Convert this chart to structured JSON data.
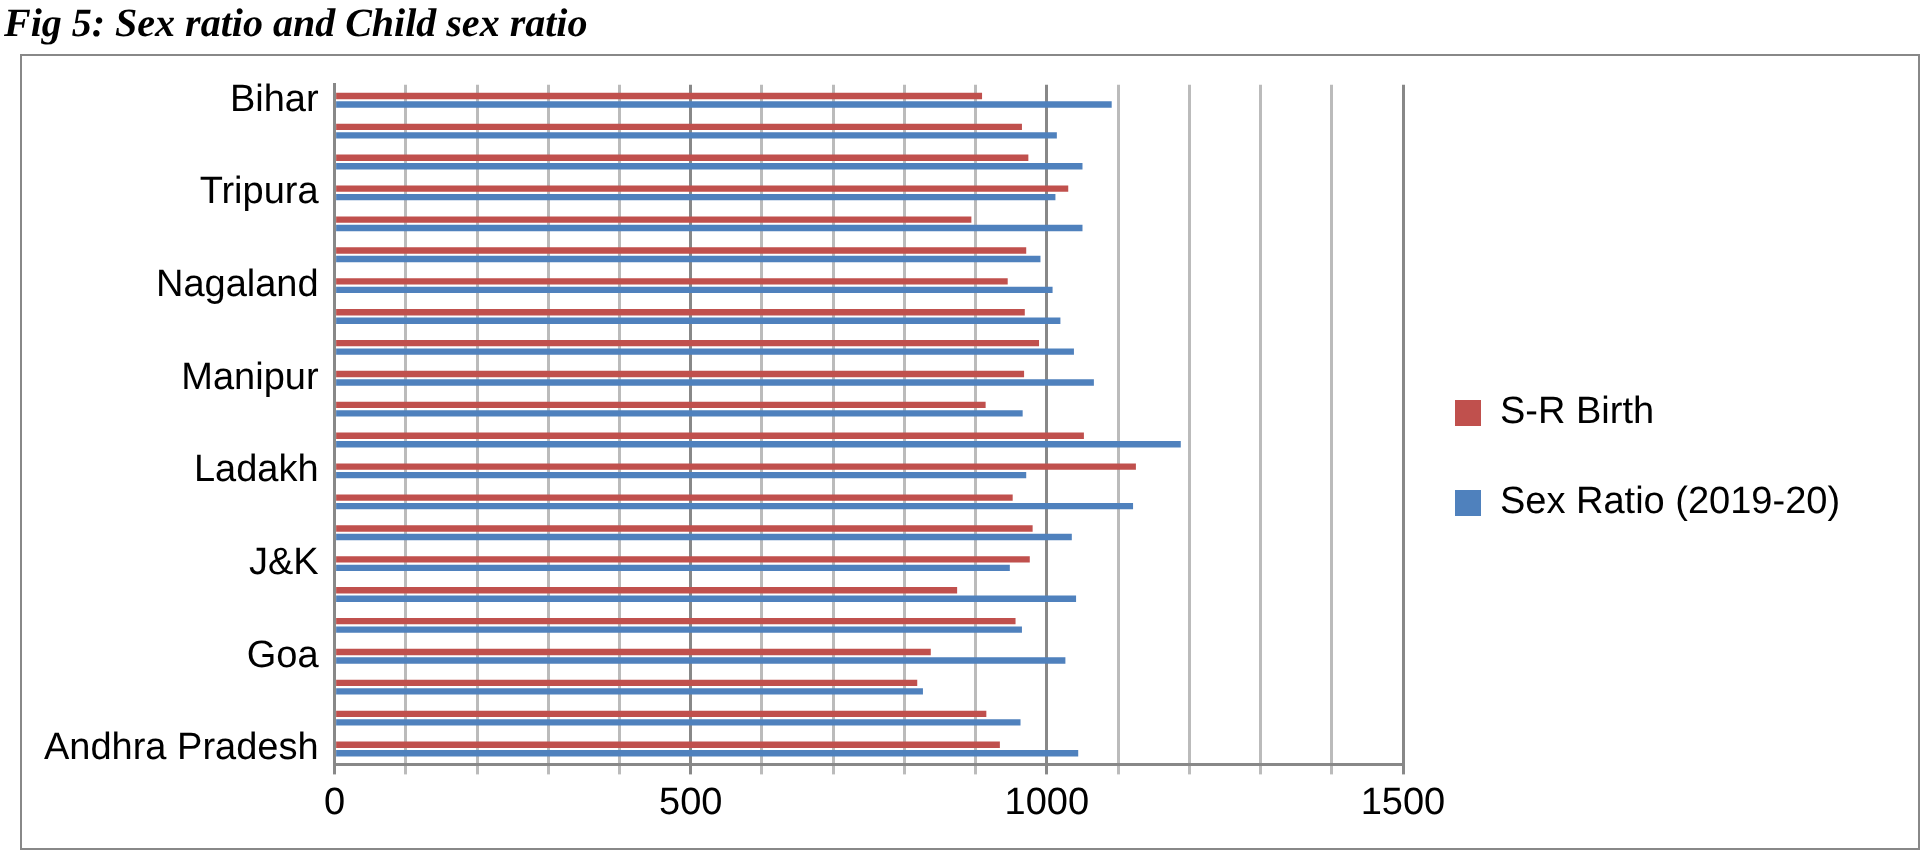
{
  "chart_data": {
    "type": "bar",
    "orientation": "horizontal",
    "title": "Fig 5: Sex ratio and Child sex ratio",
    "categories": [
      "Bihar",
      null,
      null,
      "Tripura",
      null,
      null,
      "Nagaland",
      null,
      null,
      "Manipur",
      null,
      null,
      "Ladakh",
      null,
      null,
      "J&K",
      null,
      null,
      "Goa",
      null,
      null,
      "Andhra Pradesh"
    ],
    "series": [
      {
        "name": "S-R Birth",
        "color": "#c0504d",
        "values": [
          909,
          965,
          974,
          1030,
          894,
          971,
          945,
          969,
          989,
          968,
          914,
          1052,
          1125,
          952,
          980,
          976,
          874,
          956,
          837,
          818,
          915,
          934
        ]
      },
      {
        "name": "Sex Ratio (2019-20)",
        "color": "#4f81bd",
        "values": [
          1091,
          1014,
          1050,
          1012,
          1050,
          991,
          1008,
          1019,
          1038,
          1066,
          966,
          1188,
          971,
          1121,
          1035,
          948,
          1041,
          965,
          1026,
          826,
          963,
          1044
        ]
      }
    ],
    "xlim": [
      0,
      1500
    ],
    "xticks": [
      0,
      {
        "value": 100,
        "label": null
      },
      {
        "value": 200,
        "label": null
      },
      {
        "value": 300,
        "label": null
      },
      {
        "value": 400,
        "label": null
      },
      500,
      {
        "value": 600,
        "label": null
      },
      {
        "value": 700,
        "label": null
      },
      {
        "value": 800,
        "label": null
      },
      {
        "value": 900,
        "label": null
      },
      1000,
      {
        "value": 1100,
        "label": null
      },
      {
        "value": 1200,
        "label": null
      },
      {
        "value": 1300,
        "label": null
      },
      {
        "value": 1400,
        "label": null
      },
      1500
    ],
    "grid": "x",
    "legend": "right"
  }
}
